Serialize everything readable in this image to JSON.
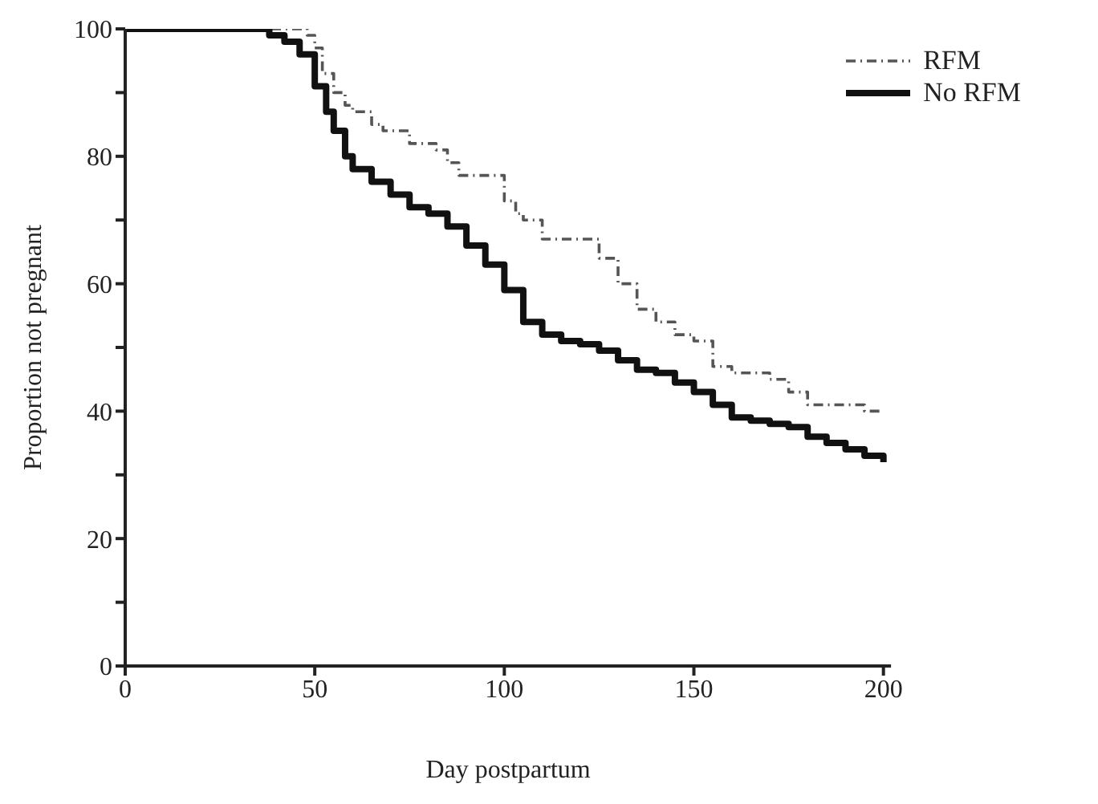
{
  "chart_data": {
    "type": "step",
    "xlabel": "Day postpartum",
    "ylabel": "Proportion not pregnant",
    "xlim": [
      0,
      202
    ],
    "xticks": [
      0,
      50,
      100,
      150,
      200
    ],
    "ylim": [
      0,
      100
    ],
    "yticks": [
      0,
      {
        "value": 10,
        "label": null
      },
      20,
      {
        "value": 30,
        "label": null
      },
      40,
      {
        "value": 50,
        "label": null
      },
      60,
      {
        "value": 70,
        "label": null
      },
      80,
      {
        "value": 90,
        "label": null
      },
      100
    ],
    "legend": "top right",
    "marker": "none",
    "series": [
      {
        "name": "RFM",
        "color": "#555555",
        "line_style": "dashed",
        "x": [
          0,
          48,
          50,
          52,
          55,
          58,
          60,
          65,
          68,
          75,
          82,
          85,
          88,
          97,
          100,
          103,
          105,
          110,
          120,
          125,
          130,
          135,
          140,
          145,
          150,
          155,
          160,
          170,
          175,
          180,
          190,
          195,
          200
        ],
        "values": [
          100,
          99,
          97,
          93,
          90,
          88,
          87,
          85,
          84,
          82,
          81,
          79,
          77,
          77,
          73,
          71,
          70,
          67,
          67,
          64,
          60,
          56,
          54,
          52,
          51,
          47,
          46,
          45,
          43,
          41,
          41,
          40,
          40
        ]
      },
      {
        "name": "No RFM",
        "color": "#111111",
        "line_style": "solid",
        "x": [
          0,
          38,
          42,
          46,
          50,
          53,
          55,
          58,
          60,
          65,
          70,
          75,
          80,
          85,
          90,
          95,
          100,
          105,
          110,
          115,
          120,
          125,
          130,
          135,
          140,
          145,
          150,
          155,
          160,
          165,
          170,
          175,
          180,
          185,
          190,
          195,
          200
        ],
        "values": [
          100,
          99,
          98,
          96,
          91,
          87,
          84,
          80,
          78,
          76,
          74,
          72,
          71,
          69,
          66,
          63,
          59,
          54,
          52,
          51,
          50.5,
          49.5,
          48,
          46.5,
          46,
          44.5,
          43,
          41,
          39,
          38.5,
          38,
          37.5,
          36,
          35,
          34,
          33,
          32
        ]
      }
    ]
  }
}
